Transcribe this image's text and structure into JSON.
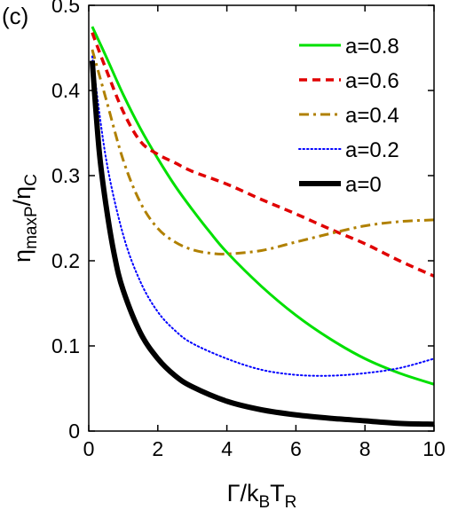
{
  "chart_data": {
    "type": "line",
    "panel_label": "(c)",
    "xlabel": {
      "main": "Γ/k",
      "sub1": "B",
      "mid": "T",
      "sub2": "R"
    },
    "ylabel": {
      "main": "η",
      "sub1": "maxP",
      "mid": "/η",
      "sub2": "C"
    },
    "xlim": [
      0,
      10
    ],
    "ylim": [
      0,
      0.5
    ],
    "xticks": [
      0,
      2,
      4,
      6,
      8,
      10
    ],
    "yticks": [
      0,
      0.1,
      0.2,
      0.3,
      0.4,
      0.5
    ],
    "xtick_labels": [
      "0",
      "2",
      "4",
      "6",
      "8",
      "10"
    ],
    "ytick_labels": [
      "0",
      "0.1",
      "0.2",
      "0.3",
      "0.4",
      "0.5"
    ],
    "grid": false,
    "legend_position": "top-right",
    "series": [
      {
        "name": "a=0.8",
        "color": "#00e000",
        "style": "solid",
        "x": [
          0.1,
          0.5,
          1,
          1.5,
          2,
          2.5,
          3,
          3.5,
          4,
          5,
          6,
          7,
          8,
          9,
          10
        ],
        "y": [
          0.475,
          0.44,
          0.395,
          0.355,
          0.32,
          0.288,
          0.26,
          0.234,
          0.21,
          0.17,
          0.136,
          0.108,
          0.085,
          0.068,
          0.055
        ]
      },
      {
        "name": "a=0.6",
        "color": "#e00000",
        "style": "dashed",
        "x": [
          0.1,
          0.5,
          1,
          1.5,
          2,
          2.5,
          3,
          4,
          5,
          6,
          7,
          8,
          9,
          10
        ],
        "y": [
          0.468,
          0.425,
          0.375,
          0.34,
          0.325,
          0.315,
          0.305,
          0.29,
          0.272,
          0.255,
          0.237,
          0.22,
          0.2,
          0.182
        ]
      },
      {
        "name": "a=0.4",
        "color": "#b08000",
        "style": "dashdot",
        "x": [
          0.1,
          0.5,
          1,
          1.5,
          2,
          2.5,
          3,
          3.5,
          4,
          5,
          6,
          7,
          8,
          9,
          10
        ],
        "y": [
          0.448,
          0.39,
          0.318,
          0.268,
          0.238,
          0.222,
          0.213,
          0.209,
          0.208,
          0.212,
          0.222,
          0.232,
          0.241,
          0.246,
          0.248
        ]
      },
      {
        "name": "a=0.2",
        "color": "#0000ff",
        "style": "dotted",
        "x": [
          0.1,
          0.5,
          1,
          1.5,
          2,
          2.5,
          3,
          4,
          5,
          6,
          7,
          8,
          9,
          10
        ],
        "y": [
          0.44,
          0.32,
          0.23,
          0.175,
          0.14,
          0.118,
          0.103,
          0.085,
          0.072,
          0.066,
          0.065,
          0.068,
          0.074,
          0.085
        ]
      },
      {
        "name": "a=0",
        "color": "#000000",
        "style": "thick",
        "x": [
          0.1,
          0.3,
          0.5,
          0.75,
          1,
          1.5,
          2,
          2.5,
          3,
          4,
          5,
          6,
          7,
          8,
          9,
          10
        ],
        "y": [
          0.435,
          0.33,
          0.265,
          0.205,
          0.165,
          0.115,
          0.085,
          0.065,
          0.052,
          0.035,
          0.025,
          0.019,
          0.015,
          0.012,
          0.009,
          0.008
        ]
      }
    ]
  }
}
